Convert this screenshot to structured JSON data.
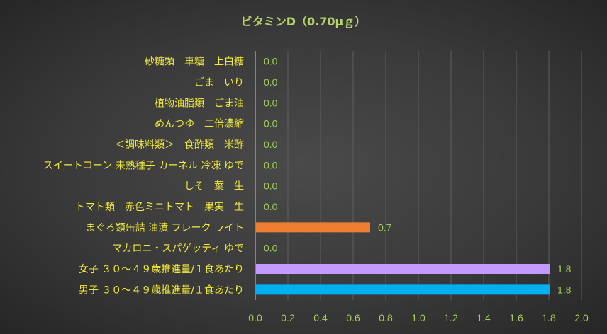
{
  "chart_data": {
    "type": "bar",
    "orientation": "horizontal",
    "title": "ビタミンD（0.70μｇ）",
    "xlim": [
      0,
      2.0
    ],
    "x_ticks": [
      "0.0",
      "0.2",
      "0.4",
      "0.6",
      "0.8",
      "1.0",
      "1.2",
      "1.4",
      "1.6",
      "1.8",
      "2.0"
    ],
    "grid": "vertical",
    "legend": "none",
    "categories": [
      "砂糖類　車糖　上白糖",
      "ごま　いり",
      "植物油脂類　ごま油",
      "めんつゆ　二倍濃縮",
      "＜調味料類＞　食酢類　米酢",
      "スイートコーン 未熟種子 カーネル 冷凍 ゆで",
      "しそ　葉　生",
      "トマト類　赤色ミニトマト　果実　生",
      "まぐろ類缶詰 油漬 フレーク ライト",
      "マカロニ・スパゲッティ ゆで",
      "女子 ３０～４９歳推進量/１食あたり",
      "男子 ３０～４９歳推進量/１食あたり"
    ],
    "values": [
      0.0,
      0.0,
      0.0,
      0.0,
      0.0,
      0.0,
      0.0,
      0.0,
      0.7,
      0.0,
      1.8,
      1.8
    ],
    "data_labels": [
      "0.0",
      "0.0",
      "0.0",
      "0.0",
      "0.0",
      "0.0",
      "0.0",
      "0.0",
      "0.7",
      "0.0",
      "1.8",
      "1.8"
    ],
    "colors": [
      "#4f81bd",
      "#4f81bd",
      "#4f81bd",
      "#4f81bd",
      "#4f81bd",
      "#4f81bd",
      "#4f81bd",
      "#4f81bd",
      "#ed7d31",
      "#4f81bd",
      "#c39bff",
      "#00b0f0"
    ]
  }
}
